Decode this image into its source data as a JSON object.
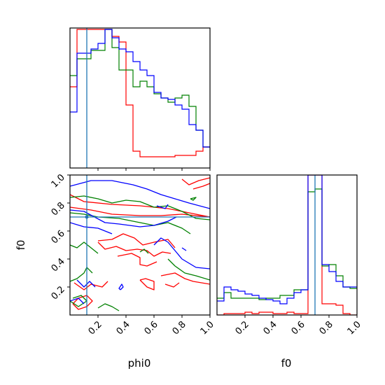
{
  "chart_data": {
    "type": "corner",
    "params": [
      "phi0",
      "f0"
    ],
    "truths": {
      "phi0": 0.12,
      "f0": 0.7,
      "color": "#1f77b4"
    },
    "colors": {
      "red": "#ff0000",
      "green": "#008000",
      "blue": "#0000ff"
    },
    "hist_phi0": {
      "type": "step",
      "bin_edges": [
        0.0,
        0.05,
        0.1,
        0.15,
        0.2,
        0.25,
        0.3,
        0.35,
        0.4,
        0.45,
        0.5,
        0.55,
        0.6,
        0.65,
        0.7,
        0.75,
        0.8,
        0.85,
        0.9,
        0.95,
        1.0
      ],
      "series": [
        {
          "color": "red",
          "values": [
            0.58,
            0.99,
            0.99,
            0.99,
            0.99,
            0.99,
            0.94,
            0.9,
            0.45,
            0.12,
            0.08,
            0.08,
            0.08,
            0.08,
            0.08,
            0.09,
            0.09,
            0.09,
            0.12,
            0.15
          ]
        },
        {
          "color": "green",
          "values": [
            0.66,
            0.78,
            0.78,
            0.84,
            0.84,
            0.99,
            0.86,
            0.7,
            0.7,
            0.58,
            0.62,
            0.58,
            0.53,
            0.5,
            0.47,
            0.5,
            0.52,
            0.44,
            0.27,
            0.15
          ]
        },
        {
          "color": "blue",
          "values": [
            0.4,
            0.82,
            0.82,
            0.85,
            0.89,
            0.99,
            0.93,
            0.85,
            0.83,
            0.76,
            0.7,
            0.66,
            0.54,
            0.5,
            0.49,
            0.45,
            0.42,
            0.31,
            0.27,
            0.15
          ]
        }
      ]
    },
    "hist_f0": {
      "type": "step",
      "bin_edges": [
        0.0,
        0.05,
        0.1,
        0.15,
        0.2,
        0.25,
        0.3,
        0.35,
        0.4,
        0.45,
        0.5,
        0.55,
        0.6,
        0.65,
        0.7,
        0.75,
        0.8,
        0.85,
        0.9,
        0.95,
        1.0
      ],
      "series": [
        {
          "color": "red",
          "values": [
            0.0,
            0.01,
            0.01,
            0.01,
            0.02,
            0.01,
            0.02,
            0.02,
            0.01,
            0.01,
            0.02,
            0.01,
            0.01,
            1.0,
            1.0,
            0.08,
            0.08,
            0.07,
            0.01,
            0.0
          ]
        },
        {
          "color": "green",
          "values": [
            0.12,
            0.16,
            0.12,
            0.12,
            0.12,
            0.12,
            0.11,
            0.12,
            0.12,
            0.14,
            0.14,
            0.18,
            0.18,
            0.88,
            0.9,
            0.35,
            0.36,
            0.28,
            0.2,
            0.19
          ]
        },
        {
          "color": "blue",
          "values": [
            0.1,
            0.2,
            0.18,
            0.17,
            0.15,
            0.14,
            0.12,
            0.11,
            0.1,
            0.08,
            0.12,
            0.16,
            0.18,
            1.0,
            1.0,
            0.36,
            0.31,
            0.24,
            0.2,
            0.2
          ]
        }
      ]
    },
    "contours_phi0_f0": [
      {
        "color": "red",
        "paths": [
          [
            [
              0.0,
              0.86
            ],
            [
              0.1,
              0.81
            ],
            [
              0.3,
              0.79
            ],
            [
              0.5,
              0.78
            ],
            [
              0.7,
              0.76
            ],
            [
              0.85,
              0.73
            ],
            [
              1.0,
              0.7
            ]
          ],
          [
            [
              0.0,
              0.77
            ],
            [
              0.15,
              0.75
            ],
            [
              0.3,
              0.72
            ],
            [
              0.5,
              0.71
            ],
            [
              0.65,
              0.71
            ],
            [
              0.8,
              0.72
            ],
            [
              1.0,
              0.7
            ]
          ],
          [
            [
              0.2,
              0.53
            ],
            [
              0.3,
              0.54
            ],
            [
              0.38,
              0.58
            ],
            [
              0.46,
              0.55
            ],
            [
              0.52,
              0.5
            ],
            [
              0.6,
              0.52
            ],
            [
              0.7,
              0.54
            ],
            [
              0.75,
              0.48
            ]
          ],
          [
            [
              0.2,
              0.52
            ],
            [
              0.25,
              0.47
            ],
            [
              0.33,
              0.49
            ],
            [
              0.4,
              0.46
            ],
            [
              0.48,
              0.47
            ],
            [
              0.55,
              0.46
            ],
            [
              0.6,
              0.42
            ],
            [
              0.66,
              0.45
            ],
            [
              0.72,
              0.44
            ]
          ],
          [
            [
              0.34,
              0.42
            ],
            [
              0.44,
              0.44
            ],
            [
              0.5,
              0.41
            ],
            [
              0.5,
              0.36
            ],
            [
              0.55,
              0.35
            ],
            [
              0.62,
              0.38
            ]
          ],
          [
            [
              0.8,
              0.97
            ],
            [
              0.85,
              0.93
            ],
            [
              0.92,
              0.96
            ],
            [
              1.0,
              0.98
            ]
          ],
          [
            [
              0.88,
              0.9
            ],
            [
              0.95,
              0.92
            ],
            [
              1.0,
              0.94
            ]
          ],
          [
            [
              0.03,
              0.23
            ],
            [
              0.1,
              0.18
            ],
            [
              0.15,
              0.22
            ],
            [
              0.23,
              0.2
            ],
            [
              0.27,
              0.24
            ]
          ],
          [
            [
              0.5,
              0.25
            ],
            [
              0.55,
              0.2
            ],
            [
              0.6,
              0.18
            ],
            [
              0.6,
              0.24
            ],
            [
              0.54,
              0.26
            ],
            [
              0.5,
              0.25
            ]
          ],
          [
            [
              0.65,
              0.28
            ],
            [
              0.75,
              0.3
            ],
            [
              0.82,
              0.26
            ],
            [
              0.88,
              0.24
            ],
            [
              1.0,
              0.22
            ]
          ],
          [
            [
              0.68,
              0.22
            ],
            [
              0.74,
              0.2
            ],
            [
              0.78,
              0.23
            ]
          ],
          [
            [
              0.02,
              0.08
            ],
            [
              0.06,
              0.04
            ],
            [
              0.12,
              0.06
            ],
            [
              0.16,
              0.1
            ],
            [
              0.12,
              0.14
            ],
            [
              0.06,
              0.12
            ],
            [
              0.02,
              0.08
            ]
          ]
        ]
      },
      {
        "color": "green",
        "paths": [
          [
            [
              0.0,
              0.84
            ],
            [
              0.1,
              0.85
            ],
            [
              0.2,
              0.83
            ],
            [
              0.3,
              0.8
            ],
            [
              0.4,
              0.82
            ],
            [
              0.5,
              0.81
            ],
            [
              0.6,
              0.77
            ],
            [
              0.7,
              0.78
            ],
            [
              0.8,
              0.74
            ],
            [
              0.9,
              0.69
            ],
            [
              1.0,
              0.68
            ]
          ],
          [
            [
              0.0,
              0.73
            ],
            [
              0.1,
              0.72
            ],
            [
              0.2,
              0.7
            ],
            [
              0.35,
              0.69
            ],
            [
              0.5,
              0.66
            ],
            [
              0.6,
              0.64
            ],
            [
              0.7,
              0.66
            ],
            [
              0.8,
              0.62
            ],
            [
              0.86,
              0.58
            ]
          ],
          [
            [
              0.0,
              0.5
            ],
            [
              0.05,
              0.48
            ],
            [
              0.1,
              0.52
            ],
            [
              0.15,
              0.48
            ],
            [
              0.2,
              0.44
            ]
          ],
          [
            [
              0.7,
              0.4
            ],
            [
              0.75,
              0.35
            ],
            [
              0.82,
              0.3
            ],
            [
              0.9,
              0.28
            ],
            [
              1.0,
              0.25
            ]
          ],
          [
            [
              0.0,
              0.24
            ],
            [
              0.05,
              0.26
            ],
            [
              0.1,
              0.3
            ],
            [
              0.12,
              0.34
            ],
            [
              0.16,
              0.3
            ]
          ],
          [
            [
              0.0,
              0.1
            ],
            [
              0.06,
              0.06
            ],
            [
              0.12,
              0.1
            ],
            [
              0.08,
              0.14
            ],
            [
              0.02,
              0.12
            ]
          ],
          [
            [
              0.2,
              0.05
            ],
            [
              0.25,
              0.08
            ],
            [
              0.3,
              0.06
            ],
            [
              0.35,
              0.03
            ]
          ],
          [
            [
              0.5,
              0.45
            ],
            [
              0.53,
              0.47
            ],
            [
              0.56,
              0.44
            ]
          ],
          [
            [
              0.86,
              0.83
            ],
            [
              0.9,
              0.84
            ],
            [
              0.88,
              0.82
            ],
            [
              0.86,
              0.83
            ]
          ]
        ]
      },
      {
        "color": "blue",
        "paths": [
          [
            [
              0.0,
              0.92
            ],
            [
              0.15,
              0.96
            ],
            [
              0.3,
              0.96
            ],
            [
              0.45,
              0.93
            ],
            [
              0.55,
              0.9
            ],
            [
              0.65,
              0.86
            ],
            [
              0.75,
              0.83
            ],
            [
              0.85,
              0.8
            ],
            [
              1.0,
              0.76
            ]
          ],
          [
            [
              0.0,
              0.75
            ],
            [
              0.1,
              0.74
            ],
            [
              0.25,
              0.66
            ],
            [
              0.35,
              0.65
            ],
            [
              0.5,
              0.63
            ],
            [
              0.6,
              0.64
            ],
            [
              0.7,
              0.67
            ],
            [
              0.76,
              0.7
            ]
          ],
          [
            [
              0.0,
              0.66
            ],
            [
              0.1,
              0.63
            ],
            [
              0.2,
              0.62
            ],
            [
              0.3,
              0.58
            ]
          ],
          [
            [
              0.6,
              0.5
            ],
            [
              0.65,
              0.55
            ],
            [
              0.7,
              0.52
            ],
            [
              0.75,
              0.46
            ],
            [
              0.8,
              0.4
            ],
            [
              0.9,
              0.34
            ],
            [
              1.0,
              0.33
            ]
          ],
          [
            [
              0.05,
              0.25
            ],
            [
              0.1,
              0.2
            ],
            [
              0.14,
              0.24
            ],
            [
              0.18,
              0.2
            ]
          ],
          [
            [
              0.0,
              0.1
            ],
            [
              0.06,
              0.12
            ],
            [
              0.1,
              0.08
            ]
          ],
          [
            [
              0.36,
              0.18
            ],
            [
              0.38,
              0.2
            ],
            [
              0.37,
              0.22
            ],
            [
              0.35,
              0.19
            ],
            [
              0.36,
              0.18
            ]
          ],
          [
            [
              0.8,
              0.48
            ],
            [
              0.83,
              0.46
            ]
          ],
          [
            [
              0.62,
              0.78
            ],
            [
              0.68,
              0.76
            ],
            [
              0.7,
              0.79
            ]
          ]
        ]
      }
    ],
    "x_ticks": [
      0.2,
      0.4,
      0.6,
      0.8,
      1.0
    ],
    "y_ticks": [
      0.2,
      0.4,
      0.6,
      0.8,
      1.0
    ],
    "xlabel_left": "phi0",
    "xlabel_right": "f0",
    "ylabel": "f0",
    "xlim": [
      0,
      1
    ],
    "ylim": [
      0,
      1
    ]
  }
}
